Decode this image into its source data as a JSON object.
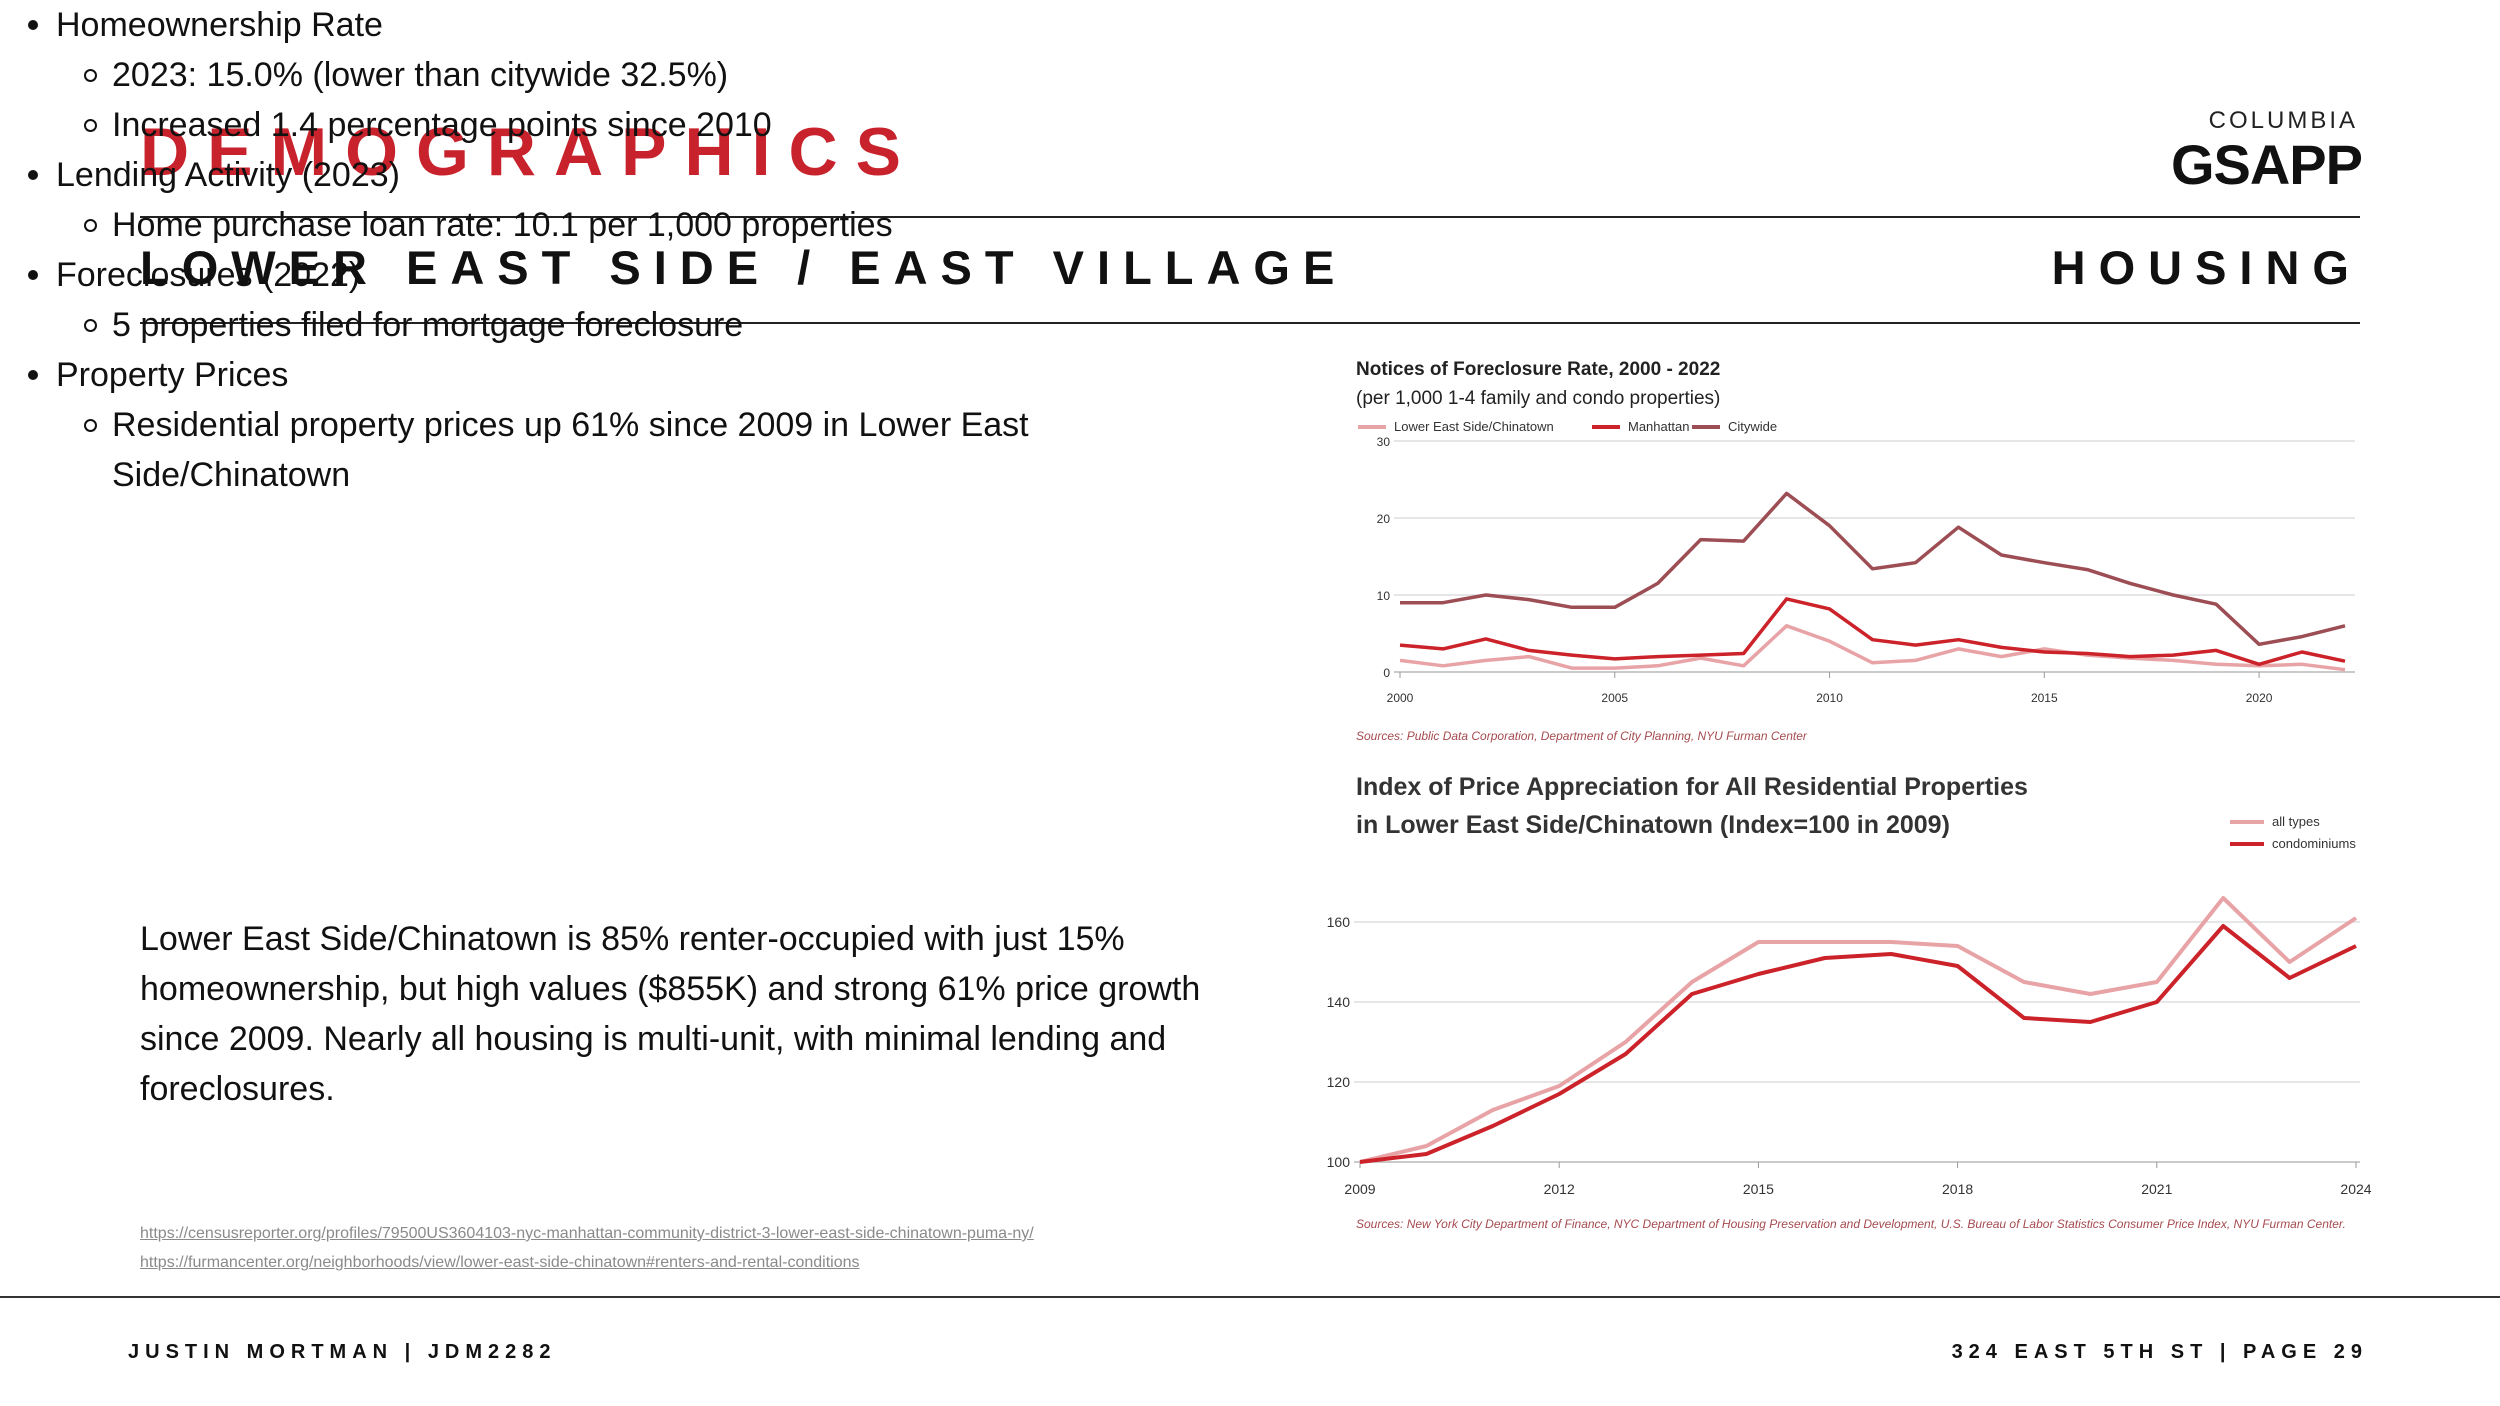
{
  "header": {
    "title": "DEMOGRAPHICS",
    "logo_top": "COLUMBIA",
    "logo_bottom": "GSAPP",
    "subtitle": "LOWER EAST SIDE / EAST VILLAGE",
    "section": "HOUSING"
  },
  "bullets": [
    {
      "level": 1,
      "text": "Homeownership Rate"
    },
    {
      "level": 2,
      "text": "2023: 15.0% (lower than citywide 32.5%)"
    },
    {
      "level": 2,
      "text": "Increased 1.4 percentage points since 2010"
    },
    {
      "level": 1,
      "text": "Lending Activity (2023)"
    },
    {
      "level": 2,
      "text": "Home purchase loan rate: 10.1 per 1,000 properties"
    },
    {
      "level": 1,
      "text": "Foreclosures (2022)"
    },
    {
      "level": 2,
      "text": "5 properties filed for mortgage foreclosure"
    },
    {
      "level": 1,
      "text": "Property Prices"
    },
    {
      "level": 2,
      "text": "Residential property prices up 61% since 2009 in Lower East Side/Chinatown"
    }
  ],
  "summary": "Lower East Side/Chinatown is 85% renter-occupied with just 15% homeownership, but high values ($855K) and strong 61% price growth since 2009. Nearly all housing is multi-unit, with minimal lending and foreclosures.",
  "links": [
    "https://censusreporter.org/profiles/79500US3604103-nyc-manhattan-community-district-3-lower-east-side-chinatown-puma-ny/",
    "https://furmancenter.org/neighborhoods/view/lower-east-side-chinatown#renters-and-rental-conditions"
  ],
  "footer": {
    "left": "JUSTIN MORTMAN | JDM2282",
    "right": "324 EAST 5TH ST | PAGE 29"
  },
  "chart_data": [
    {
      "type": "line",
      "title": "Notices of Foreclosure Rate, 2000 - 2022",
      "subtitle": "(per 1,000 1-4 family and condo properties)",
      "source": "Sources: Public Data Corporation, Department of City Planning, NYU Furman Center",
      "x": [
        2000,
        2001,
        2002,
        2003,
        2004,
        2005,
        2006,
        2007,
        2008,
        2009,
        2010,
        2011,
        2012,
        2013,
        2014,
        2015,
        2016,
        2017,
        2018,
        2019,
        2020,
        2021,
        2022
      ],
      "xticks": [
        2000,
        2005,
        2010,
        2015,
        2020
      ],
      "xtick_labels": [
        "2000",
        "2005",
        "2010",
        "2015",
        "2020"
      ],
      "ylim": [
        0,
        30
      ],
      "yticks": [
        0,
        10,
        20,
        30
      ],
      "ytick_labels": [
        "0",
        "10",
        "20",
        "30"
      ],
      "grid": true,
      "legend_position": "top-left",
      "series": [
        {
          "name": "Lower East Side/Chinatown",
          "color": "#e8a3a6",
          "values": [
            1.5,
            0.8,
            1.5,
            2.0,
            0.5,
            0.5,
            0.8,
            1.8,
            0.8,
            6.0,
            4.0,
            1.2,
            1.5,
            3.0,
            2.0,
            3.0,
            2.2,
            1.8,
            1.5,
            1.0,
            0.8,
            1.0,
            0.3
          ]
        },
        {
          "name": "Manhattan",
          "color": "#cc2229",
          "values": [
            3.5,
            3.0,
            4.3,
            2.8,
            2.2,
            1.7,
            2.0,
            2.2,
            2.4,
            9.5,
            8.2,
            4.2,
            3.5,
            4.2,
            3.2,
            2.6,
            2.4,
            2.0,
            2.2,
            2.8,
            1.0,
            2.6,
            1.4
          ]
        },
        {
          "name": "Citywide",
          "color": "#9c4e54",
          "values": [
            9.0,
            9.0,
            10.0,
            9.4,
            8.4,
            8.4,
            11.5,
            17.2,
            17.0,
            23.2,
            19.0,
            13.4,
            14.2,
            18.8,
            15.2,
            14.2,
            13.3,
            11.5,
            10.0,
            8.8,
            3.6,
            4.6,
            6.0
          ]
        }
      ]
    },
    {
      "type": "line",
      "title": "Index of Price Appreciation for All Residential Properties",
      "subtitle": "in Lower East Side/Chinatown (Index=100 in 2009)",
      "source": "Sources: New York City Department of Finance, NYC Department of Housing Preservation and Development, U.S. Bureau of Labor Statistics Consumer Price Index, NYU Furman Center.",
      "x": [
        2009,
        2010,
        2011,
        2012,
        2013,
        2014,
        2015,
        2016,
        2017,
        2018,
        2019,
        2020,
        2021,
        2022,
        2023,
        2024
      ],
      "xticks": [
        2009,
        2012,
        2015,
        2018,
        2021,
        2024
      ],
      "xtick_labels": [
        "2009",
        "2012",
        "2015",
        "2018",
        "2021",
        "2024"
      ],
      "ylim": [
        100,
        165
      ],
      "yticks": [
        100,
        120,
        140,
        160
      ],
      "ytick_labels": [
        "100",
        "120",
        "140",
        "160"
      ],
      "grid": true,
      "legend_position": "top-right",
      "series": [
        {
          "name": "all types",
          "color": "#e8a3a6",
          "values": [
            100,
            104,
            113,
            119,
            130,
            145,
            155,
            155,
            155,
            154,
            145,
            142,
            145,
            166,
            150,
            161
          ]
        },
        {
          "name": "condominiums",
          "color": "#cc2229",
          "values": [
            100,
            102,
            109,
            117,
            127,
            142,
            147,
            151,
            152,
            149,
            136,
            135,
            140,
            159,
            146,
            154
          ]
        }
      ]
    }
  ]
}
